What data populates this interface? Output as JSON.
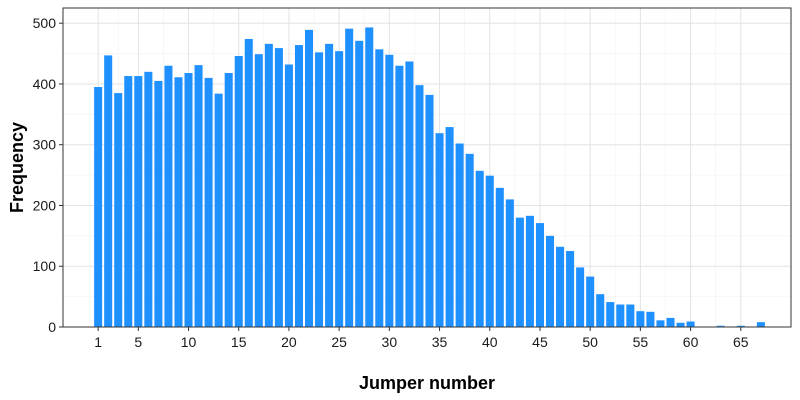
{
  "chart_data": {
    "type": "bar",
    "title": "",
    "xlabel": "Jumper number",
    "ylabel": "Frequency",
    "x_ticks": [
      1,
      5,
      10,
      15,
      20,
      25,
      30,
      35,
      40,
      45,
      50,
      55,
      60,
      65
    ],
    "y_ticks": [
      0,
      100,
      200,
      300,
      400,
      500
    ],
    "xlim": [
      -2.5,
      70
    ],
    "ylim": [
      0,
      525
    ],
    "grid": true,
    "bar_color": "#1E90FF",
    "x": [
      1,
      2,
      3,
      4,
      5,
      6,
      7,
      8,
      9,
      10,
      11,
      12,
      13,
      14,
      15,
      16,
      17,
      18,
      19,
      20,
      21,
      22,
      23,
      24,
      25,
      26,
      27,
      28,
      29,
      30,
      31,
      32,
      33,
      34,
      35,
      36,
      37,
      38,
      39,
      40,
      41,
      42,
      43,
      44,
      45,
      46,
      47,
      48,
      49,
      50,
      51,
      52,
      53,
      54,
      55,
      56,
      57,
      58,
      59,
      60,
      61,
      62,
      63,
      64,
      65,
      66,
      67,
      68
    ],
    "values": [
      395,
      447,
      385,
      413,
      413,
      420,
      405,
      430,
      411,
      418,
      431,
      410,
      384,
      418,
      446,
      474,
      449,
      466,
      459,
      432,
      464,
      489,
      452,
      466,
      454,
      491,
      471,
      493,
      457,
      448,
      430,
      437,
      398,
      382,
      319,
      329,
      302,
      285,
      257,
      249,
      229,
      210,
      180,
      183,
      171,
      150,
      132,
      125,
      98,
      83,
      54,
      41,
      37,
      37,
      26,
      25,
      11,
      15,
      7,
      9,
      0,
      0,
      2,
      0,
      2,
      0,
      8,
      0
    ]
  }
}
